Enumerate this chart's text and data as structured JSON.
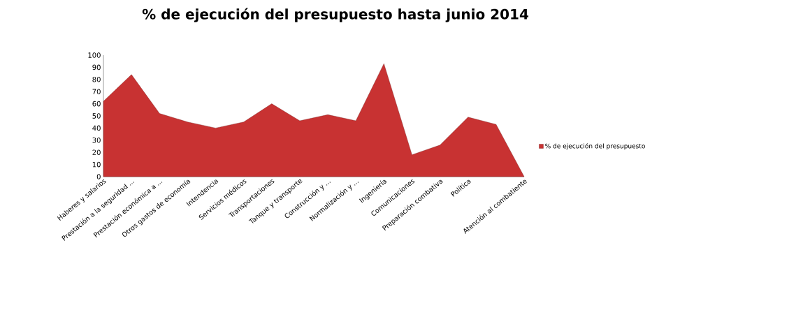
{
  "chart_data": {
    "type": "area",
    "title": "% de ejecución del presupuesto hasta junio 2014",
    "categories": [
      "Haberes y salarios",
      "Prestación a la seguridad ...",
      "Prestación económica a ...",
      "Otros gastos  de economía",
      "Intendencia",
      "Servicios médicos",
      "Transportaciones",
      "Tanque y transporte",
      "Construcción y ...",
      "Normalización y ...",
      "Ingeniería",
      "Comunicaciones",
      "Preparación combativa",
      "Política",
      null,
      "Atención al combatiente"
    ],
    "series": [
      {
        "name": "% de ejecución del presupuesto",
        "color": "#c83232",
        "values": [
          62,
          84,
          52,
          45,
          40,
          45,
          60,
          46,
          51,
          46,
          93,
          18,
          26,
          49,
          43,
          0
        ]
      }
    ],
    "ylim": [
      0,
      100
    ],
    "yticks": [
      0,
      10,
      20,
      30,
      40,
      50,
      60,
      70,
      80,
      90,
      100
    ],
    "legend": "right",
    "grid": false
  }
}
